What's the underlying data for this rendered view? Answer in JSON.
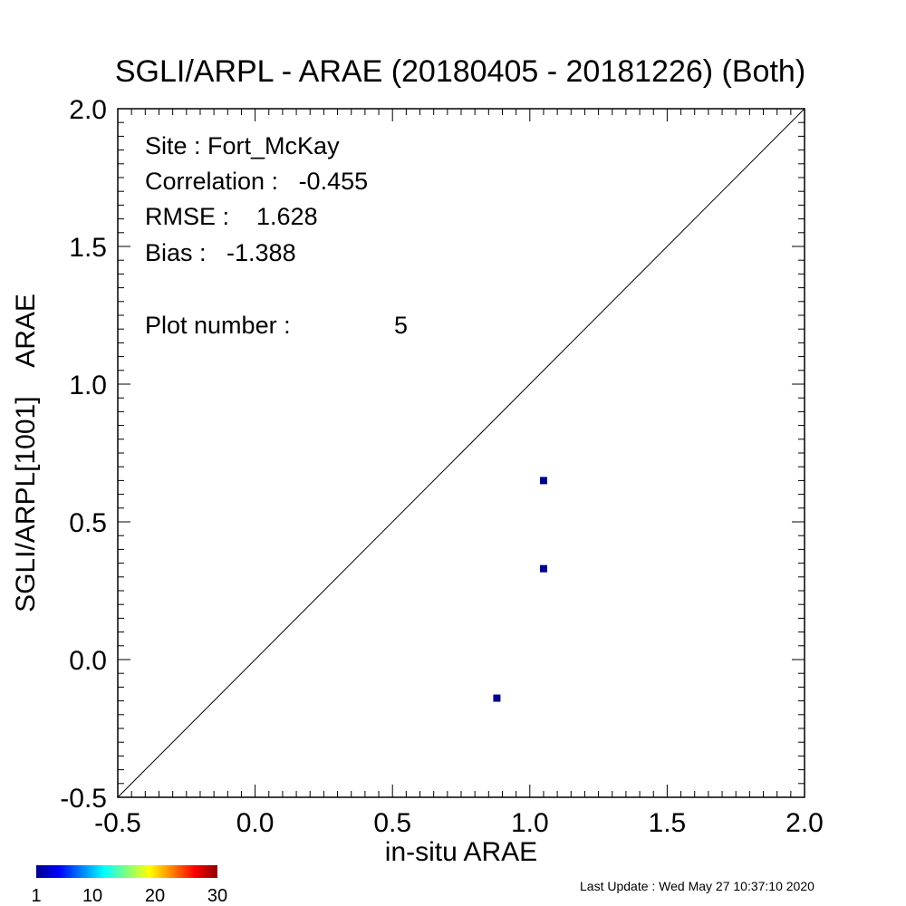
{
  "chart_data": {
    "type": "scatter",
    "title": "SGLI/ARPL - ARAE (20180405 - 20181226) (Both)",
    "xlabel": "in-situ ARAE",
    "ylabel": "SGLI/ARPL[1001]    ARAE",
    "xlim": [
      -0.5,
      2.0
    ],
    "ylim": [
      -0.5,
      2.0
    ],
    "x_ticks": [
      "-0.5",
      "0.0",
      "0.5",
      "1.0",
      "1.5",
      "2.0"
    ],
    "y_ticks": [
      "-0.5",
      "0.0",
      "0.5",
      "1.0",
      "1.5",
      "2.0"
    ],
    "reference_line": "1:1",
    "grid": false,
    "points": [
      {
        "x": 1.05,
        "y": 0.65
      },
      {
        "x": 1.05,
        "y": 0.33
      },
      {
        "x": 0.88,
        "y": -0.14
      }
    ],
    "point_color": "#00008b",
    "stats": {
      "site": "Site : Fort_McKay",
      "correlation": "Correlation :   -0.455",
      "rmse": "RMSE :    1.628",
      "bias": "Bias :   -1.388",
      "plot_number": "Plot number :",
      "plot_number_value": "5"
    },
    "colorbar": {
      "colors": [
        "#00008b",
        "#0000ff",
        "#0080ff",
        "#00ffff",
        "#80ff80",
        "#ffff00",
        "#ff8000",
        "#ff0000",
        "#8b0000"
      ],
      "ticks": [
        "1",
        "10",
        "20",
        "30"
      ]
    }
  },
  "footer": {
    "last_update": "Last Update : Wed May 27 10:37:10 2020"
  }
}
